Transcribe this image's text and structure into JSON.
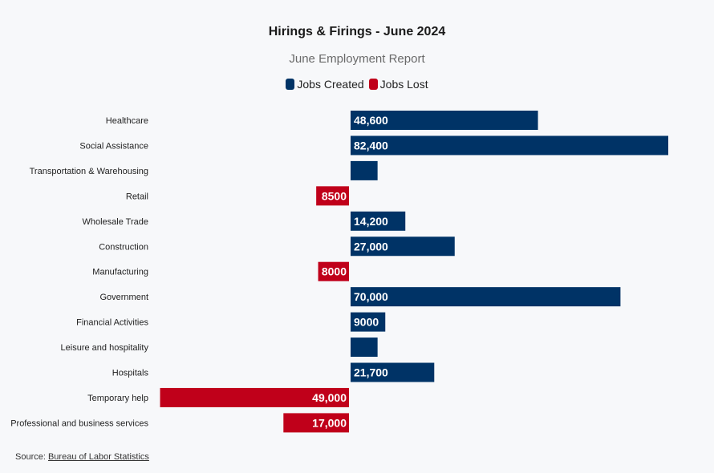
{
  "chart_data": {
    "type": "bar",
    "orientation": "horizontal",
    "title": "Hirings & Firings - June 2024",
    "subtitle": "June Employment Report",
    "legend": {
      "position": "top-center",
      "entries": [
        {
          "label": "Jobs Created",
          "color": "#003366"
        },
        {
          "label": "Jobs Lost",
          "color": "#c0001a"
        }
      ]
    },
    "categories": [
      "Healthcare",
      "Social Assistance",
      "Transportation & Warehousing",
      "Retail",
      "Wholesale Trade",
      "Construction",
      "Manufacturing",
      "Government",
      "Financial Activities",
      "Leisure and hospitality",
      "Hospitals",
      "Temporary help",
      "Professional and business services"
    ],
    "values": [
      48600,
      82400,
      7000,
      -8500,
      14200,
      27000,
      -8000,
      70000,
      9000,
      7000,
      21700,
      -49000,
      -17000
    ],
    "data_labels": [
      "48,600",
      "82,400",
      "",
      "8500",
      "14,200",
      "27,000",
      "8000",
      "70,000",
      "9000",
      "",
      "21,700",
      "49,000",
      "17,000"
    ],
    "xlim": [
      -49000,
      84000
    ],
    "grid": false,
    "colors": {
      "positive": "#003366",
      "negative": "#c0001a"
    }
  },
  "source": {
    "prefix": "Source: ",
    "link_text": "Bureau of Labor Statistics"
  }
}
